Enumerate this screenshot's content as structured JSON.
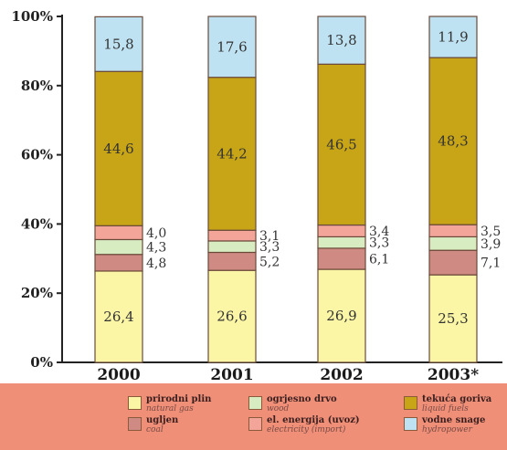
{
  "chart_data": {
    "type": "bar",
    "stacked": true,
    "percent": true,
    "categories": [
      "2000",
      "2001",
      "2002",
      "2003*"
    ],
    "ylim": [
      0,
      100
    ],
    "yticks": [
      "0%",
      "20%",
      "40%",
      "60%",
      "80%",
      "100%"
    ],
    "series": [
      {
        "name": "prirodni plin",
        "name_en": "natural gas",
        "color": "#fbf6a6",
        "values": [
          26.4,
          26.6,
          26.9,
          25.3
        ],
        "labels": [
          "26,4",
          "26,6",
          "26,9",
          "25,3"
        ]
      },
      {
        "name": "ugljen",
        "name_en": "coal",
        "color": "#cf8b83",
        "values": [
          4.8,
          5.2,
          6.1,
          7.1
        ],
        "labels": [
          "4,8",
          "5,2",
          "6,1",
          "7,1"
        ]
      },
      {
        "name": "ogrjesno drvo",
        "name_en": "wood",
        "color": "#d8ecc2",
        "values": [
          4.3,
          3.3,
          3.3,
          3.9
        ],
        "labels": [
          "4,3",
          "3,3",
          "3,3",
          "3,9"
        ]
      },
      {
        "name": "el. energija (uvoz)",
        "name_en": "electricity (import)",
        "color": "#f4a59a",
        "values": [
          4.0,
          3.1,
          3.4,
          3.5
        ],
        "labels": [
          "4,0",
          "3,1",
          "3,4",
          "3,5"
        ]
      },
      {
        "name": "tekuća goriva",
        "name_en": "liquid fuels",
        "color": "#c8a516",
        "values": [
          44.6,
          44.2,
          46.5,
          48.3
        ],
        "labels": [
          "44,6",
          "44,2",
          "46,5",
          "48,3"
        ]
      },
      {
        "name": "vodne snage",
        "name_en": "hydropower",
        "color": "#bfe2f2",
        "values": [
          15.8,
          17.6,
          13.8,
          11.9
        ],
        "labels": [
          "15,8",
          "17,6",
          "13,8",
          "11,9"
        ]
      }
    ]
  }
}
